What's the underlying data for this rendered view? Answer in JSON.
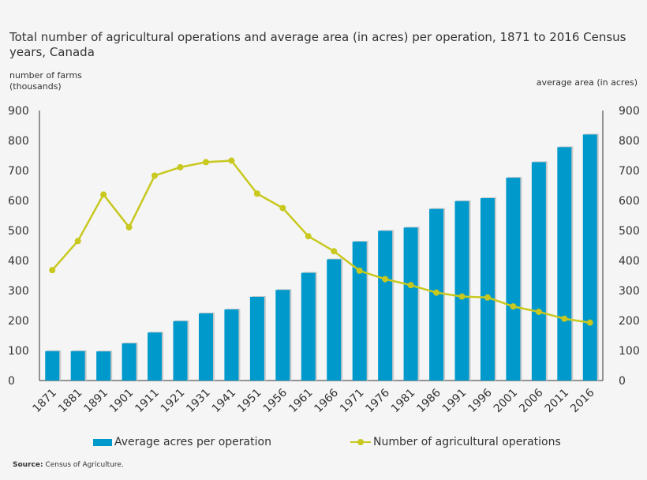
{
  "chart_data": {
    "type": "bar",
    "title": "Total number of agricultural operations and average area (in acres) per operation, 1871 to 2016 Census years, Canada",
    "ylabel_left": "number of farms\n(thousands)",
    "ylabel_right": "average area (in acres)",
    "ylim": [
      0,
      900
    ],
    "yticks": [
      "0",
      "100",
      "200",
      "300",
      "400",
      "500",
      "600",
      "700",
      "800",
      "900"
    ],
    "categories": [
      "1871",
      "1881",
      "1891",
      "1901",
      "1911",
      "1921",
      "1931",
      "1941",
      "1951",
      "1956",
      "1961",
      "1966",
      "1971",
      "1976",
      "1981",
      "1986",
      "1991",
      "1996",
      "2001",
      "2006",
      "2011",
      "2016"
    ],
    "series": [
      {
        "name": "Average acres per operation",
        "kind": "bar",
        "axis": "right",
        "color": "#0099cc",
        "values": [
          98,
          98,
          97,
          124,
          160,
          198,
          224,
          237,
          279,
          302,
          359,
          404,
          463,
          499,
          510,
          572,
          598,
          608,
          676,
          728,
          778,
          820
        ]
      },
      {
        "name": "Number of agricultural operations",
        "kind": "line",
        "axis": "left",
        "color": "#c8c81e",
        "values": [
          368,
          465,
          620,
          511,
          683,
          711,
          728,
          733,
          623,
          575,
          481,
          431,
          366,
          338,
          318,
          293,
          280,
          277,
          247,
          229,
          206,
          193
        ]
      }
    ],
    "legend_position": "bottom",
    "grid": false
  },
  "source": {
    "label": "Source:",
    "text": "Census of Agriculture."
  }
}
